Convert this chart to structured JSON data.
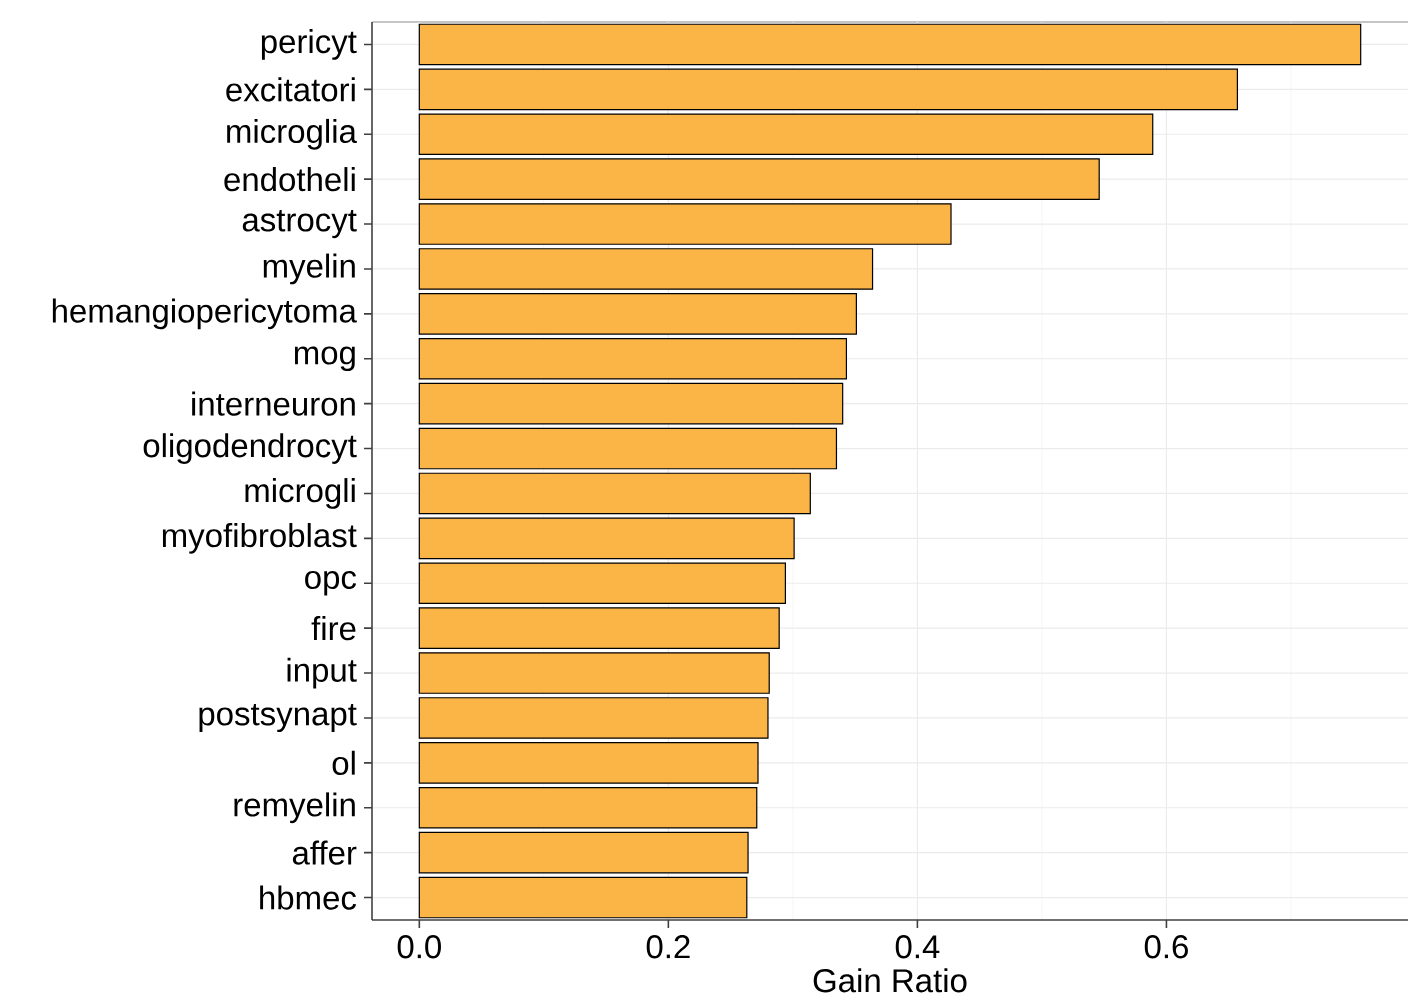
{
  "chart_data": {
    "type": "bar",
    "orientation": "horizontal",
    "xlabel": "Gain Ratio",
    "categories": [
      "pericyt",
      "excitatori",
      "microglia",
      "endotheli",
      "astrocyt",
      "myelin",
      "hemangiopericytoma",
      "mog",
      "interneuron",
      "oligodendrocyt",
      "microgli",
      "myofibroblast",
      "opc",
      "fire",
      "input",
      "postsynapt",
      "ol",
      "remyelin",
      "affer",
      "hbmec"
    ],
    "values": [
      0.756,
      0.657,
      0.589,
      0.546,
      0.427,
      0.364,
      0.351,
      0.343,
      0.34,
      0.335,
      0.314,
      0.301,
      0.294,
      0.289,
      0.281,
      0.28,
      0.272,
      0.271,
      0.264,
      0.263
    ],
    "color": "#fbb546",
    "xlim": [
      -0.038,
      0.794
    ],
    "xticks": [
      {
        "value": 0,
        "label": "0.0"
      },
      0.2,
      0.4,
      0.6
    ],
    "grid": true
  }
}
